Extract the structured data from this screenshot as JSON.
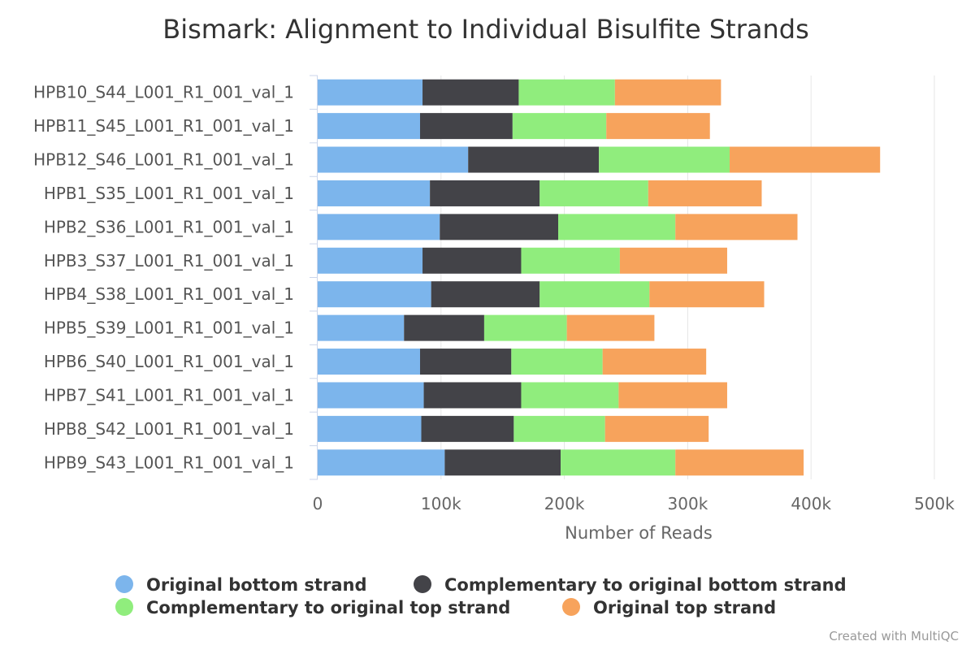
{
  "chart_data": {
    "type": "bar",
    "orientation": "horizontal",
    "stacked": true,
    "title": "Bismark: Alignment to Individual Bisulfite Strands",
    "xlabel": "Number of Reads",
    "ylabel": "",
    "xlim": [
      0,
      500000
    ],
    "x_ticks": [
      0,
      100000,
      200000,
      300000,
      400000,
      500000
    ],
    "x_tick_labels": [
      "0",
      "100k",
      "200k",
      "300k",
      "400k",
      "500k"
    ],
    "grid": true,
    "legend_position": "bottom-center",
    "categories": [
      "HPB10_S44_L001_R1_001_val_1",
      "HPB11_S45_L001_R1_001_val_1",
      "HPB12_S46_L001_R1_001_val_1",
      "HPB1_S35_L001_R1_001_val_1",
      "HPB2_S36_L001_R1_001_val_1",
      "HPB3_S37_L001_R1_001_val_1",
      "HPB4_S38_L001_R1_001_val_1",
      "HPB5_S39_L001_R1_001_val_1",
      "HPB6_S40_L001_R1_001_val_1",
      "HPB7_S41_L001_R1_001_val_1",
      "HPB8_S42_L001_R1_001_val_1",
      "HPB9_S43_L001_R1_001_val_1"
    ],
    "series": [
      {
        "name": "Original bottom strand",
        "color": "#7cb5ec",
        "values": [
          85000,
          83000,
          122000,
          91000,
          99000,
          85000,
          92000,
          70000,
          83000,
          86000,
          84000,
          103000
        ]
      },
      {
        "name": "Complementary to original bottom strand",
        "color": "#434348",
        "values": [
          78000,
          75000,
          106000,
          89000,
          96000,
          80000,
          88000,
          65000,
          74000,
          79000,
          75000,
          94000
        ]
      },
      {
        "name": "Complementary to original top strand",
        "color": "#90ed7d",
        "values": [
          78000,
          76000,
          106000,
          88000,
          95000,
          80000,
          89000,
          67000,
          74000,
          79000,
          74000,
          93000
        ]
      },
      {
        "name": "Original top strand",
        "color": "#f7a35c",
        "values": [
          86000,
          84000,
          122000,
          92000,
          99000,
          87000,
          93000,
          71000,
          84000,
          88000,
          84000,
          104000
        ]
      }
    ]
  },
  "credit": "Created with MultiQC"
}
